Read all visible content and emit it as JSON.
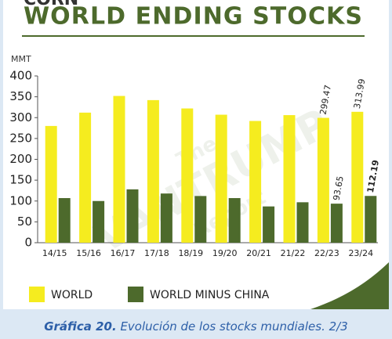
{
  "chart_data": {
    "type": "bar",
    "supertitle": "CORN",
    "title": "WORLD ENDING STOCKS",
    "y_label": "MMT",
    "categories": [
      "14/15",
      "15/16",
      "16/17",
      "17/18",
      "18/19",
      "19/20",
      "20/21",
      "21/22",
      "22/23",
      "23/24"
    ],
    "series": [
      {
        "name": "WORLD",
        "color": "#f5ec1f",
        "values": [
          280,
          312,
          352,
          342,
          322,
          307,
          292,
          306,
          299.47,
          313.99
        ],
        "value_labels": [
          null,
          null,
          null,
          null,
          null,
          null,
          null,
          null,
          "299.47",
          "313.99"
        ]
      },
      {
        "name": "WORLD MINUS CHINA",
        "color": "#4d6a2c",
        "values": [
          107,
          100,
          128,
          118,
          112,
          107,
          87,
          97,
          93.65,
          112.19
        ],
        "value_labels": [
          null,
          null,
          null,
          null,
          null,
          null,
          null,
          null,
          "93.65",
          "112.19"
        ]
      }
    ],
    "ylim": [
      0,
      400
    ],
    "yticks": [
      0,
      50,
      100,
      150,
      200,
      250,
      300,
      350,
      400
    ],
    "watermark": [
      "The",
      "VANTRUMP",
      "Report"
    ]
  },
  "caption": {
    "label": "Gráfica 20.",
    "text": "Evolución de los stocks mundiales. 2/3"
  }
}
